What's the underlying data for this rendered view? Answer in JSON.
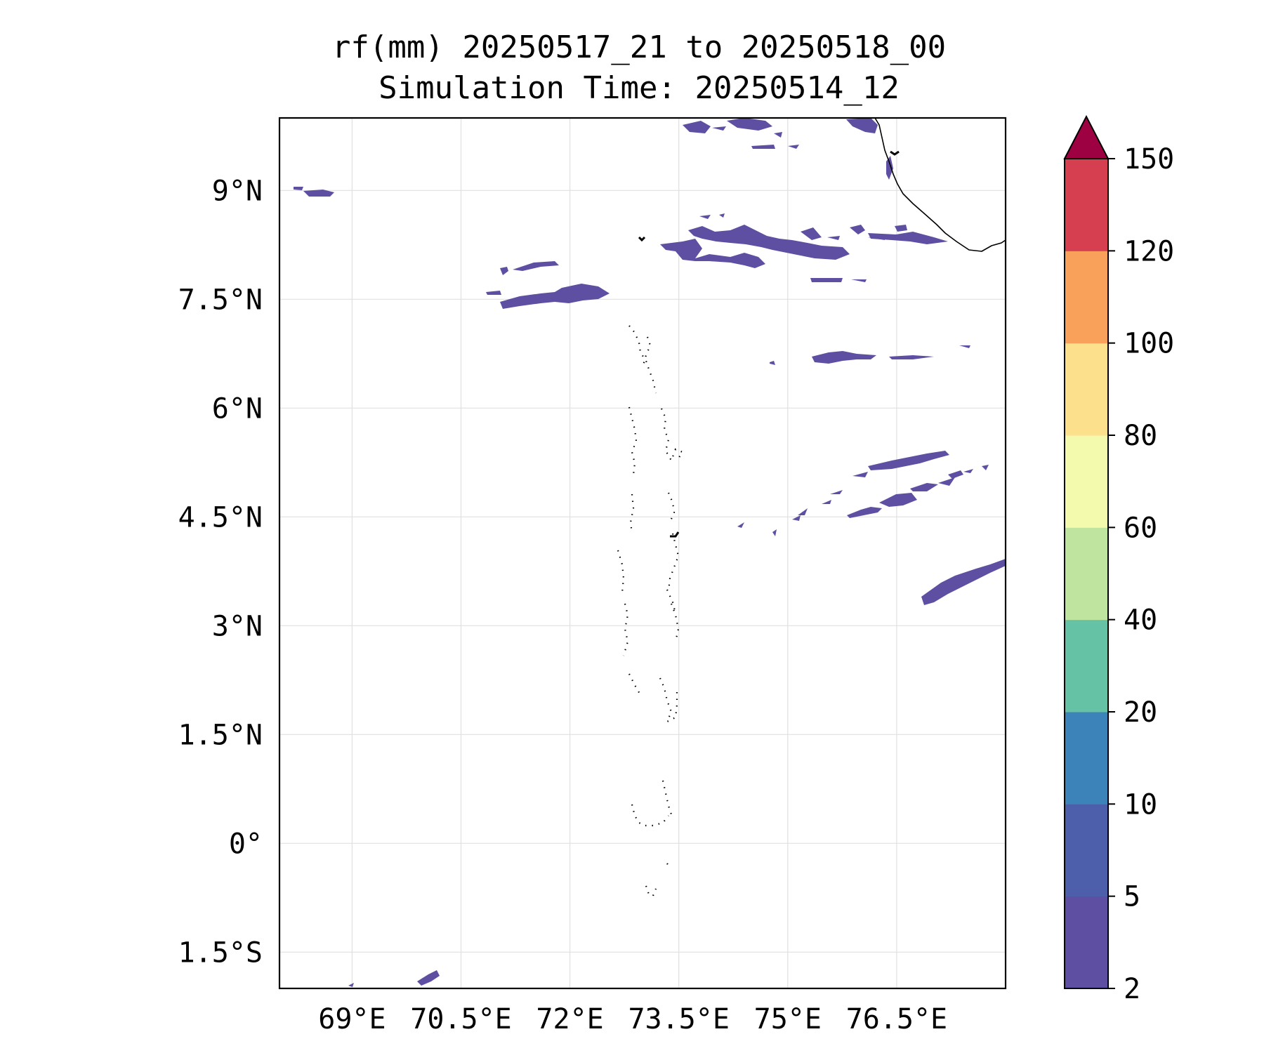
{
  "figure": {
    "title_line1": "rf(mm) 20250517_21 to 20250518_00",
    "title_line2": "Simulation Time: 20250514_12"
  },
  "map": {
    "lon_range": [
      68.0,
      78.0
    ],
    "lat_range": [
      -2.0,
      10.0
    ],
    "x_ticks": [
      {
        "value": 69.0,
        "label": "69°E"
      },
      {
        "value": 70.5,
        "label": "70.5°E"
      },
      {
        "value": 72.0,
        "label": "72°E"
      },
      {
        "value": 73.5,
        "label": "73.5°E"
      },
      {
        "value": 75.0,
        "label": "75°E"
      },
      {
        "value": 76.5,
        "label": "76.5°E"
      }
    ],
    "y_ticks": [
      {
        "value": 9.0,
        "label": "9°N"
      },
      {
        "value": 7.5,
        "label": "7.5°N"
      },
      {
        "value": 6.0,
        "label": "6°N"
      },
      {
        "value": 4.5,
        "label": "4.5°N"
      },
      {
        "value": 3.0,
        "label": "3°N"
      },
      {
        "value": 1.5,
        "label": "1.5°N"
      },
      {
        "value": 0.0,
        "label": "0°"
      },
      {
        "value": -1.5,
        "label": "1.5°S"
      }
    ],
    "grid": true
  },
  "colorbar": {
    "levels": [
      {
        "value": "2",
        "color": "#5e4fa2"
      },
      {
        "value": "5",
        "color": "#4d5eab"
      },
      {
        "value": "10",
        "color": "#3b83b9"
      },
      {
        "value": "20",
        "color": "#66c2a5"
      },
      {
        "value": "40",
        "color": "#bee4a0"
      },
      {
        "value": "60",
        "color": "#f3f9ad"
      },
      {
        "value": "80",
        "color": "#fde08b"
      },
      {
        "value": "100",
        "color": "#f9a05b"
      },
      {
        "value": "120",
        "color": "#d63f4f"
      },
      {
        "value": "150",
        "color": "#9e0142"
      }
    ],
    "extend": "max"
  },
  "colors": {
    "rain_lowest": "#5e4fa2",
    "coast": "#000000",
    "grid": "#e0e0e0"
  }
}
